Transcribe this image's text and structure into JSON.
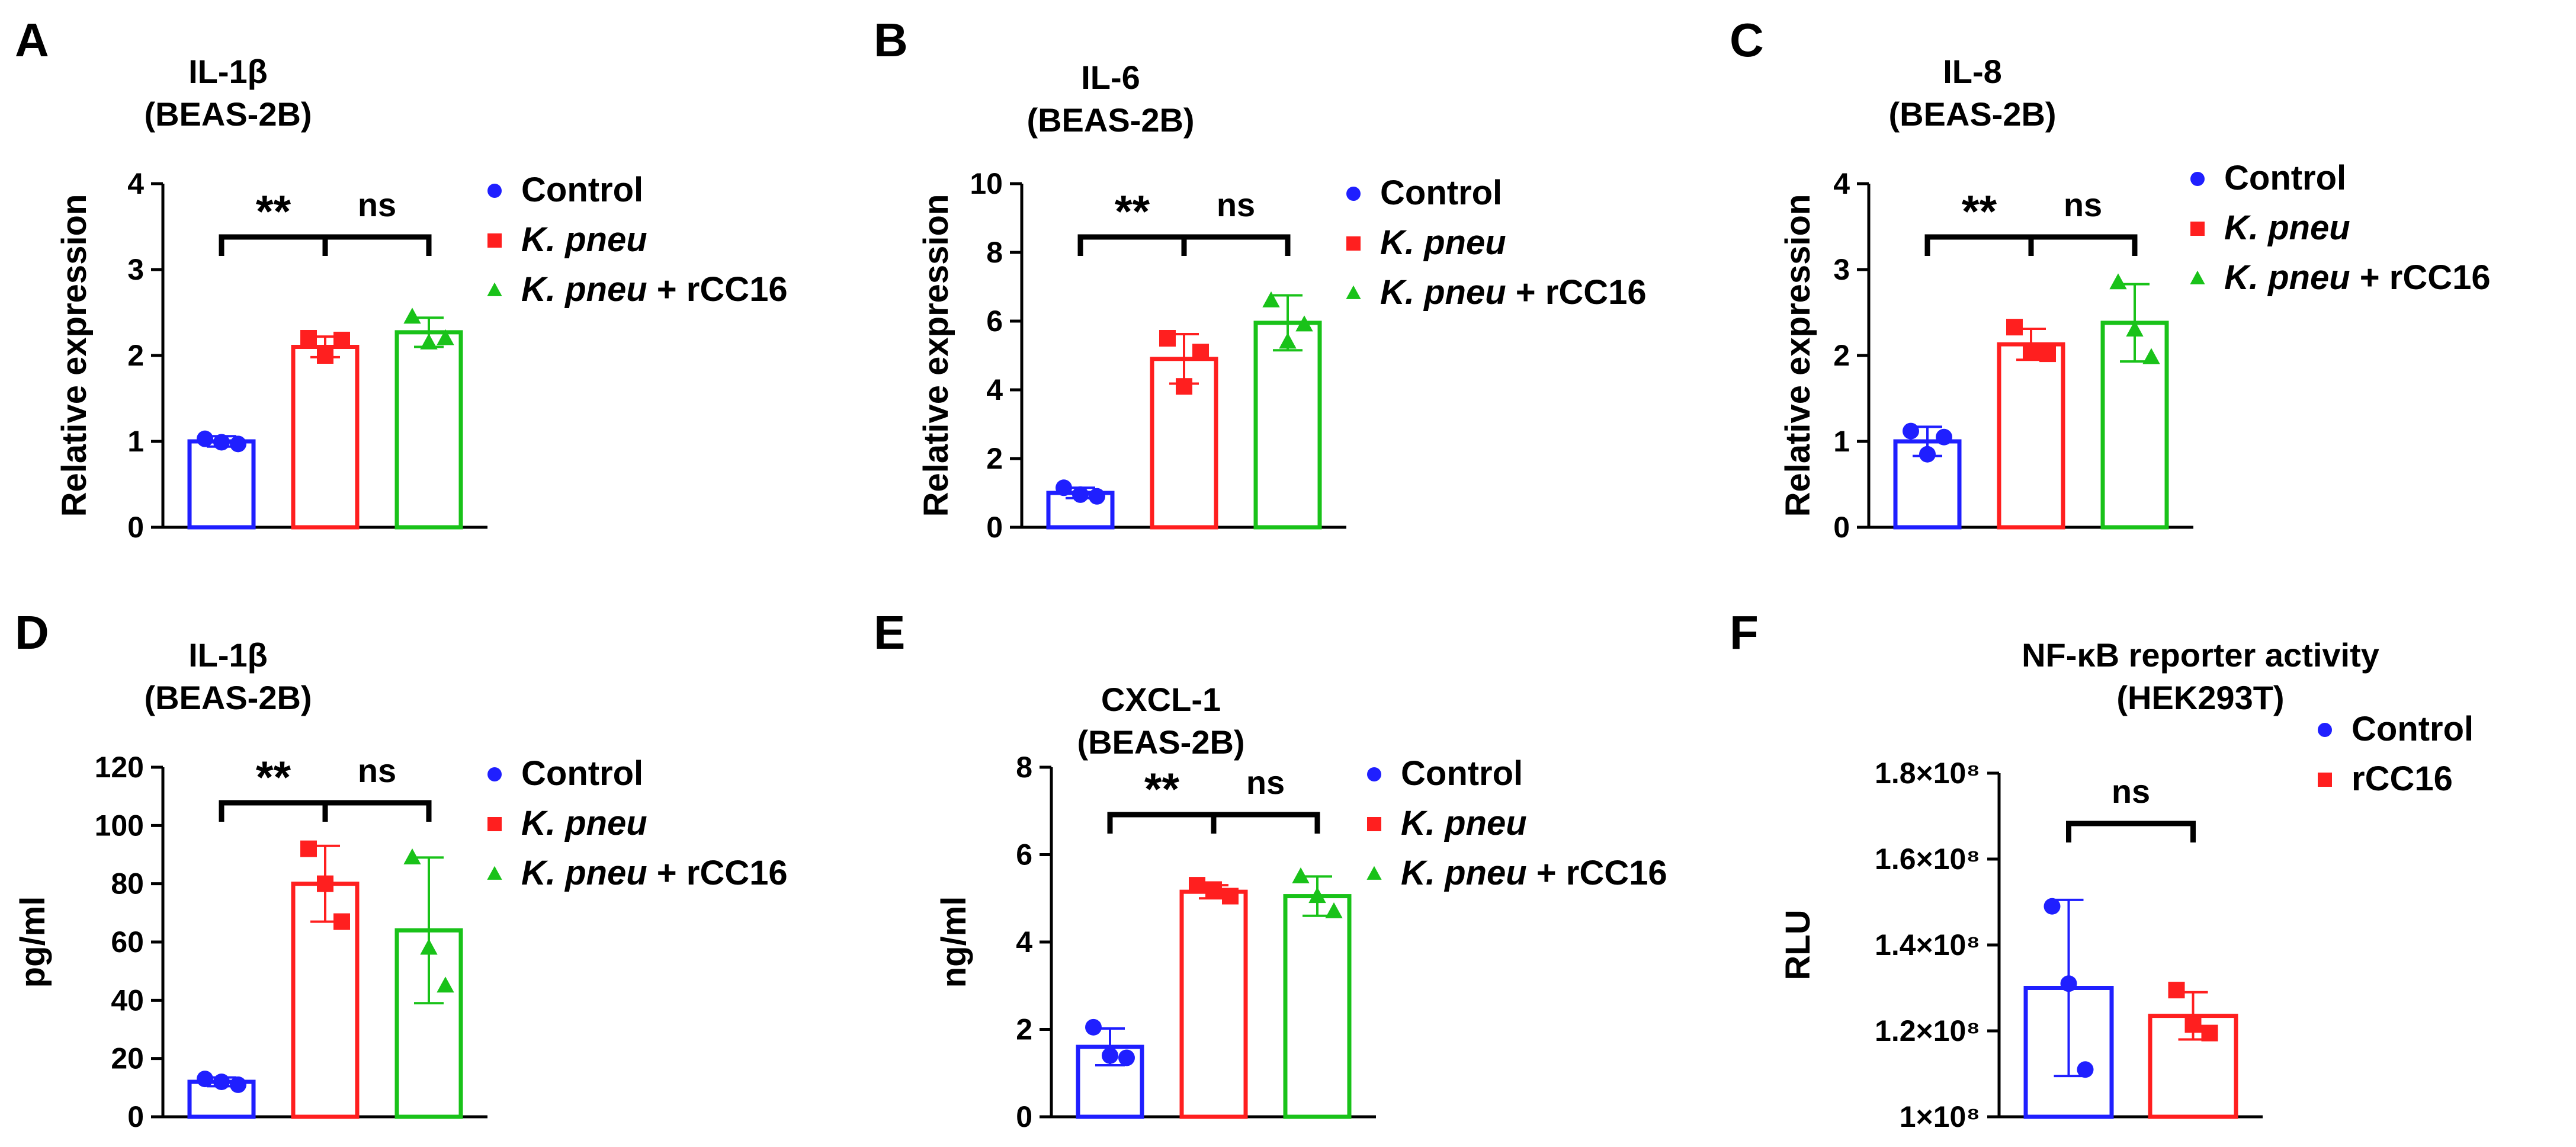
{
  "chart_data": [
    {
      "panel": "A",
      "type": "bar",
      "title": [
        "IL-1β",
        "(BEAS-2B)"
      ],
      "ylabel": "Relative expression",
      "ylim": [
        0,
        4
      ],
      "yticks": [
        "0",
        "1",
        "2",
        "3",
        "4"
      ],
      "ytick_values": [
        0,
        1,
        2,
        3,
        4
      ],
      "series": [
        {
          "name": "Control",
          "italic": "",
          "suffix": "Control",
          "color": "#1f1fff",
          "marker": "circle",
          "mean": 1.0,
          "sd": 0.06,
          "points": [
            1.03,
            0.99,
            0.97
          ]
        },
        {
          "name": "K. pneu",
          "italic": "K. pneu",
          "suffix": "",
          "color": "#ff1f1f",
          "marker": "square",
          "mean": 2.1,
          "sd": 0.12,
          "points": [
            2.2,
            2.0,
            2.18
          ]
        },
        {
          "name": "K. pneu + rCC16",
          "italic": "K. pneu",
          "suffix": " + rCC16",
          "color": "#19c219",
          "marker": "triangle",
          "mean": 2.27,
          "sd": 0.17,
          "points": [
            2.45,
            2.15,
            2.2
          ]
        }
      ],
      "comparisons": [
        {
          "from": 0,
          "to": 1,
          "label": "**"
        },
        {
          "from": 1,
          "to": 2,
          "label": "ns"
        }
      ]
    },
    {
      "panel": "B",
      "type": "bar",
      "title": [
        "IL-6",
        "(BEAS-2B)"
      ],
      "ylabel": "Relative expression",
      "ylim": [
        0,
        10
      ],
      "yticks": [
        "0",
        "2",
        "4",
        "6",
        "8",
        "10"
      ],
      "ytick_values": [
        0,
        2,
        4,
        6,
        8,
        10
      ],
      "series": [
        {
          "name": "Control",
          "italic": "",
          "suffix": "Control",
          "color": "#1f1fff",
          "marker": "circle",
          "mean": 1.0,
          "sd": 0.15,
          "points": [
            1.15,
            0.95,
            0.9
          ]
        },
        {
          "name": "K. pneu",
          "italic": "K. pneu",
          "suffix": "",
          "color": "#ff1f1f",
          "marker": "square",
          "mean": 4.9,
          "sd": 0.72,
          "points": [
            5.5,
            4.1,
            5.1
          ]
        },
        {
          "name": "K. pneu + rCC16",
          "italic": "K. pneu",
          "suffix": " + rCC16",
          "color": "#19c219",
          "marker": "triangle",
          "mean": 5.95,
          "sd": 0.8,
          "points": [
            6.6,
            5.4,
            5.9
          ]
        }
      ],
      "comparisons": [
        {
          "from": 0,
          "to": 1,
          "label": "**"
        },
        {
          "from": 1,
          "to": 2,
          "label": "ns"
        }
      ]
    },
    {
      "panel": "C",
      "type": "bar",
      "title": [
        "IL-8",
        "(BEAS-2B)"
      ],
      "ylabel": "Relative expression",
      "ylim": [
        0,
        4
      ],
      "yticks": [
        "0",
        "1",
        "2",
        "3",
        "4"
      ],
      "ytick_values": [
        0,
        1,
        2,
        3,
        4
      ],
      "series": [
        {
          "name": "Control",
          "italic": "",
          "suffix": "Control",
          "color": "#1f1fff",
          "marker": "circle",
          "mean": 1.0,
          "sd": 0.17,
          "points": [
            1.12,
            0.85,
            1.05
          ]
        },
        {
          "name": "K. pneu",
          "italic": "K. pneu",
          "suffix": "",
          "color": "#ff1f1f",
          "marker": "square",
          "mean": 2.13,
          "sd": 0.18,
          "points": [
            2.33,
            2.05,
            2.02
          ]
        },
        {
          "name": "K. pneu + rCC16",
          "italic": "K. pneu",
          "suffix": " + rCC16",
          "color": "#19c219",
          "marker": "triangle",
          "mean": 2.38,
          "sd": 0.45,
          "points": [
            2.85,
            2.3,
            1.98
          ]
        }
      ],
      "comparisons": [
        {
          "from": 0,
          "to": 1,
          "label": "**"
        },
        {
          "from": 1,
          "to": 2,
          "label": "ns"
        }
      ]
    },
    {
      "panel": "D",
      "type": "bar",
      "title": [
        "IL-1β",
        "(BEAS-2B)"
      ],
      "ylabel": "pg/ml",
      "ylim": [
        0,
        120
      ],
      "yticks": [
        "0",
        "20",
        "40",
        "60",
        "80",
        "100",
        "120"
      ],
      "ytick_values": [
        0,
        20,
        40,
        60,
        80,
        100,
        120
      ],
      "series": [
        {
          "name": "Control",
          "italic": "",
          "suffix": "Control",
          "color": "#1f1fff",
          "marker": "circle",
          "mean": 12,
          "sd": 1.5,
          "points": [
            13,
            12,
            11
          ]
        },
        {
          "name": "K. pneu",
          "italic": "K. pneu",
          "suffix": "",
          "color": "#ff1f1f",
          "marker": "square",
          "mean": 80,
          "sd": 13,
          "points": [
            92,
            80,
            67
          ]
        },
        {
          "name": "K. pneu + rCC16",
          "italic": "K. pneu",
          "suffix": " + rCC16",
          "color": "#19c219",
          "marker": "triangle",
          "mean": 64,
          "sd": 25,
          "points": [
            89,
            58,
            45
          ]
        }
      ],
      "comparisons": [
        {
          "from": 0,
          "to": 1,
          "label": "**"
        },
        {
          "from": 1,
          "to": 2,
          "label": "ns"
        }
      ]
    },
    {
      "panel": "E",
      "type": "bar",
      "title": [
        "CXCL-1",
        "(BEAS-2B)"
      ],
      "ylabel": "ng/ml",
      "ylim": [
        0,
        8
      ],
      "yticks": [
        "0",
        "2",
        "4",
        "6",
        "8"
      ],
      "ytick_values": [
        0,
        2,
        4,
        6,
        8
      ],
      "series": [
        {
          "name": "Control",
          "italic": "",
          "suffix": "Control",
          "color": "#1f1fff",
          "marker": "circle",
          "mean": 1.6,
          "sd": 0.42,
          "points": [
            2.05,
            1.4,
            1.35
          ]
        },
        {
          "name": "K. pneu",
          "italic": "K. pneu",
          "suffix": "",
          "color": "#ff1f1f",
          "marker": "square",
          "mean": 5.15,
          "sd": 0.15,
          "points": [
            5.3,
            5.2,
            5.05
          ]
        },
        {
          "name": "K. pneu + rCC16",
          "italic": "K. pneu",
          "suffix": " + rCC16",
          "color": "#19c219",
          "marker": "triangle",
          "mean": 5.05,
          "sd": 0.45,
          "points": [
            5.5,
            5.05,
            4.7
          ]
        }
      ],
      "comparisons": [
        {
          "from": 0,
          "to": 1,
          "label": "**"
        },
        {
          "from": 1,
          "to": 2,
          "label": "ns"
        }
      ]
    },
    {
      "panel": "F",
      "type": "bar",
      "title": [
        "NF-κB reporter activity",
        "(HEK293T)"
      ],
      "ylabel": "RLU",
      "ylim": [
        100000000,
        180000000
      ],
      "yticks": [
        "1×10⁸",
        "1.2×10⁸",
        "1.4×10⁸",
        "1.6×10⁸",
        "1.8×10⁸"
      ],
      "ytick_values": [
        100000000,
        120000000,
        140000000,
        160000000,
        180000000
      ],
      "series": [
        {
          "name": "Control",
          "italic": "",
          "suffix": "Control",
          "color": "#1f1fff",
          "marker": "circle",
          "mean": 130000000,
          "sd": 20500000,
          "points": [
            149000000,
            131000000,
            111000000
          ]
        },
        {
          "name": "rCC16",
          "italic": "",
          "suffix": "rCC16",
          "color": "#ff1f1f",
          "marker": "square",
          "mean": 123500000,
          "sd": 5500000,
          "points": [
            129500000,
            121500000,
            119500000
          ]
        }
      ],
      "comparisons": [
        {
          "from": 0,
          "to": 1,
          "label": "ns"
        }
      ]
    }
  ]
}
